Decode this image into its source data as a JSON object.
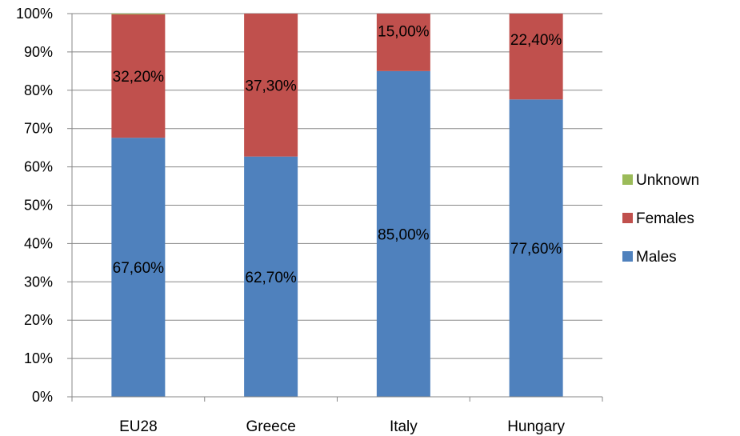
{
  "chart_data": {
    "type": "bar",
    "stacked": "percent",
    "categories": [
      "EU28",
      "Greece",
      "Italy",
      "Hungary"
    ],
    "series": [
      {
        "name": "Males",
        "values": [
          67.6,
          62.7,
          85.0,
          77.6
        ],
        "labels": [
          "67,60%",
          "62,70%",
          "85,00%",
          "77,60%"
        ],
        "color": "#4F81BD"
      },
      {
        "name": "Females",
        "values": [
          32.2,
          37.3,
          15.0,
          22.4
        ],
        "labels": [
          "32,20%",
          "37,30%",
          "15,00%",
          "22,40%"
        ],
        "color": "#C0504D"
      },
      {
        "name": "Unknown",
        "values": [
          0.2,
          0,
          0,
          0
        ],
        "labels": [
          "",
          "",
          "",
          ""
        ],
        "color": "#9BBB59"
      }
    ],
    "y_ticks": [
      "0%",
      "10%",
      "20%",
      "30%",
      "40%",
      "50%",
      "60%",
      "70%",
      "80%",
      "90%",
      "100%"
    ],
    "ylim": [
      0,
      100
    ],
    "grid": true,
    "legend_position": "right",
    "legend_order": [
      "Unknown",
      "Females",
      "Males"
    ]
  }
}
